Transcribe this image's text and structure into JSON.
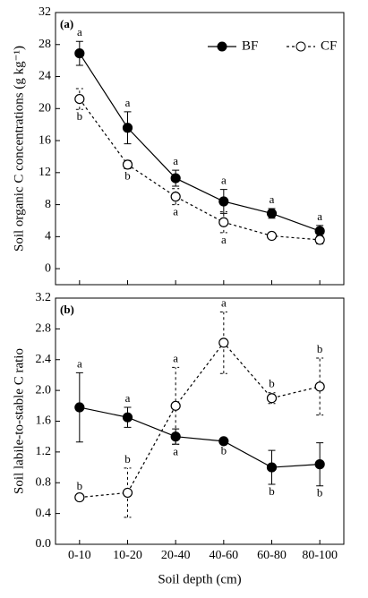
{
  "chart_data": [
    {
      "type": "line",
      "title": "(a)",
      "ylabel": "Soil organic C concentrations (g kg⁻¹)",
      "ylim": [
        -2,
        32
      ],
      "yticks": [
        0,
        4,
        8,
        12,
        16,
        20,
        24,
        28,
        32
      ],
      "series": [
        {
          "name": "BF",
          "color": "#000000",
          "filled": true,
          "dashed": false,
          "values": [
            26.9,
            17.6,
            11.3,
            8.4,
            6.9,
            4.7
          ],
          "errors": [
            1.5,
            2.0,
            1.0,
            1.5,
            0.6,
            0.7
          ],
          "labels": [
            "a",
            "a",
            "a",
            "a",
            "a",
            "a"
          ]
        },
        {
          "name": "CF",
          "color": "#000000",
          "filled": false,
          "dashed": true,
          "values": [
            21.2,
            13.0,
            9.0,
            5.8,
            4.1,
            3.6
          ],
          "errors": [
            1.3,
            0.5,
            1.0,
            1.3,
            0.3,
            0.5
          ],
          "labels": [
            "b",
            "b",
            "a",
            "a",
            null,
            null
          ]
        }
      ]
    },
    {
      "type": "line",
      "title": "(b)",
      "ylabel": "Soil labile-to-stable C ratio",
      "xlabel": "Soil depth (cm)",
      "categories": [
        "0-10",
        "10-20",
        "20-40",
        "40-60",
        "60-80",
        "80-100"
      ],
      "ylim": [
        0,
        3.2
      ],
      "yticks": [
        {
          "value": 0,
          "label": "0.0"
        },
        0.4,
        0.8,
        1.2,
        1.6,
        {
          "value": 2,
          "label": "2.0"
        },
        2.4,
        2.8,
        3.2
      ],
      "series": [
        {
          "color": "#000000",
          "filled": true,
          "dashed": false,
          "values": [
            1.78,
            1.65,
            1.4,
            1.34,
            1.0,
            1.04
          ],
          "errors": [
            0.45,
            0.13,
            0.1,
            0.03,
            0.22,
            0.28
          ],
          "labels": [
            "a",
            "a",
            "a",
            "b",
            "b",
            "b"
          ]
        },
        {
          "color": "#000000",
          "filled": false,
          "dashed": true,
          "values": [
            0.61,
            0.67,
            1.8,
            2.62,
            1.9,
            2.05
          ],
          "errors": [
            0.03,
            0.32,
            0.5,
            0.4,
            0.07,
            0.37
          ],
          "labels": [
            "b",
            "b",
            "a",
            "a",
            "b",
            "b"
          ]
        }
      ]
    }
  ]
}
